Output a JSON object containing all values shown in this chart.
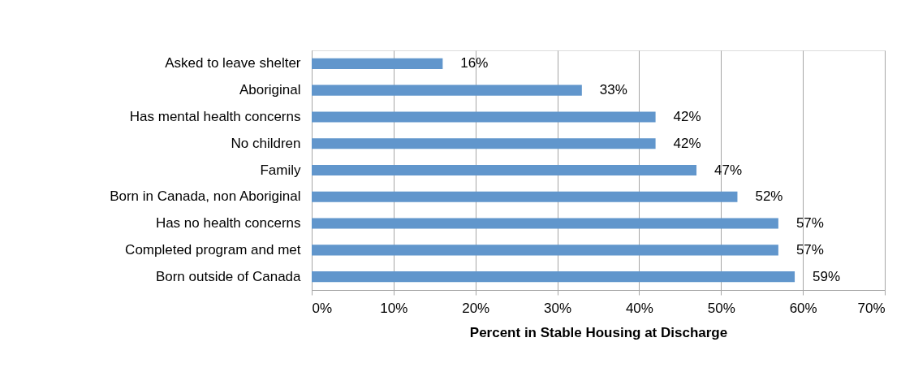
{
  "chart_data": {
    "type": "bar",
    "orientation": "horizontal",
    "xlabel": "Percent in Stable Housing at Discharge",
    "categories": [
      "Asked to leave shelter",
      "Aboriginal",
      "Has mental health concerns",
      "No children",
      "Family",
      "Born in Canada, non Aboriginal",
      "Has no health concerns",
      "Completed program and met",
      "Born outside of Canada"
    ],
    "values": [
      16,
      33,
      42,
      42,
      47,
      52,
      57,
      57,
      59
    ],
    "value_labels": [
      "16%",
      "33%",
      "42%",
      "42%",
      "47%",
      "52%",
      "57%",
      "57%",
      "59%"
    ],
    "color": "#6196cc",
    "xlim": [
      0,
      70
    ],
    "xticks": [
      {
        "value": 0,
        "label": "0%"
      },
      {
        "value": 10,
        "label": "10%"
      },
      {
        "value": 20,
        "label": "20%"
      },
      {
        "value": 30,
        "label": "30%"
      },
      {
        "value": 40,
        "label": "40%"
      },
      {
        "value": 50,
        "label": "50%"
      },
      {
        "value": 60,
        "label": "60%"
      },
      {
        "value": 70,
        "label": "70%"
      }
    ],
    "grid": "x"
  }
}
